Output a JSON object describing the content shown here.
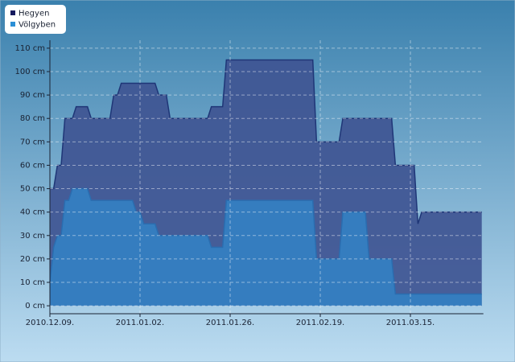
{
  "chart_data": {
    "type": "area",
    "x": [
      "2010.12.09",
      "2010.12.10",
      "2010.12.11",
      "2010.12.12",
      "2010.12.13",
      "2010.12.14",
      "2010.12.15",
      "2010.12.16",
      "2010.12.17",
      "2010.12.18",
      "2010.12.19",
      "2010.12.20",
      "2010.12.21",
      "2010.12.22",
      "2010.12.23",
      "2010.12.24",
      "2010.12.25",
      "2010.12.26",
      "2010.12.27",
      "2010.12.28",
      "2010.12.29",
      "2010.12.30",
      "2010.12.31",
      "2011.01.01",
      "2011.01.02",
      "2011.01.03",
      "2011.01.04",
      "2011.01.05",
      "2011.01.06",
      "2011.01.07",
      "2011.01.08",
      "2011.01.09",
      "2011.01.10",
      "2011.01.11",
      "2011.01.12",
      "2011.01.13",
      "2011.01.14",
      "2011.01.15",
      "2011.01.16",
      "2011.01.17",
      "2011.01.18",
      "2011.01.19",
      "2011.01.20",
      "2011.01.21",
      "2011.01.22",
      "2011.01.23",
      "2011.01.24",
      "2011.01.25",
      "2011.01.26",
      "2011.01.27",
      "2011.01.28",
      "2011.01.29",
      "2011.01.30",
      "2011.01.31",
      "2011.02.01",
      "2011.02.02",
      "2011.02.03",
      "2011.02.04",
      "2011.02.05",
      "2011.02.06",
      "2011.02.07",
      "2011.02.08",
      "2011.02.09",
      "2011.02.10",
      "2011.02.11",
      "2011.02.12",
      "2011.02.13",
      "2011.02.14",
      "2011.02.15",
      "2011.02.16",
      "2011.02.17",
      "2011.02.18",
      "2011.02.19",
      "2011.02.20",
      "2011.02.21",
      "2011.02.22",
      "2011.02.23",
      "2011.02.24",
      "2011.02.25",
      "2011.02.26",
      "2011.02.27",
      "2011.02.28",
      "2011.03.01",
      "2011.03.02",
      "2011.03.03",
      "2011.03.04",
      "2011.03.05",
      "2011.03.06",
      "2011.03.07",
      "2011.03.08",
      "2011.03.09",
      "2011.03.10",
      "2011.03.11",
      "2011.03.12",
      "2011.03.13",
      "2011.03.14",
      "2011.03.15",
      "2011.03.16",
      "2011.03.17",
      "2011.03.18",
      "2011.03.19",
      "2011.03.20",
      "2011.03.21",
      "2011.03.22",
      "2011.03.23",
      "2011.03.24",
      "2011.03.25",
      "2011.03.26",
      "2011.03.27",
      "2011.03.28",
      "2011.03.29",
      "2011.03.30",
      "2011.03.31",
      "2011.04.01",
      "2011.04.02",
      "2011.04.03"
    ],
    "series": [
      {
        "name": "Hegyen",
        "color": "#1f3677",
        "fill": "#3f5592",
        "legend_color": "#151a5e",
        "values": [
          50,
          50,
          60,
          60,
          80,
          80,
          80,
          85,
          85,
          85,
          85,
          80,
          80,
          80,
          80,
          80,
          80,
          90,
          90,
          95,
          95,
          95,
          95,
          95,
          95,
          95,
          95,
          95,
          95,
          90,
          90,
          90,
          80,
          80,
          80,
          80,
          80,
          80,
          80,
          80,
          80,
          80,
          80,
          85,
          85,
          85,
          85,
          105,
          105,
          105,
          105,
          105,
          105,
          105,
          105,
          105,
          105,
          105,
          105,
          105,
          105,
          105,
          105,
          105,
          105,
          105,
          105,
          105,
          105,
          105,
          105,
          70,
          70,
          70,
          70,
          70,
          70,
          70,
          80,
          80,
          80,
          80,
          80,
          80,
          80,
          80,
          80,
          80,
          80,
          80,
          80,
          80,
          60,
          60,
          60,
          60,
          60,
          60,
          35,
          40,
          40,
          40,
          40,
          40,
          40,
          40,
          40,
          40,
          40,
          40,
          40,
          40,
          40,
          40,
          40,
          40
        ]
      },
      {
        "name": "Völgyben",
        "color": "#2a6db0",
        "fill": "#3480c2",
        "legend_color": "#2b8fd6",
        "values": [
          10,
          25,
          30,
          30,
          45,
          45,
          50,
          50,
          50,
          50,
          50,
          45,
          45,
          45,
          45,
          45,
          45,
          45,
          45,
          45,
          45,
          45,
          45,
          40,
          40,
          35,
          35,
          35,
          35,
          30,
          30,
          30,
          30,
          30,
          30,
          30,
          30,
          30,
          30,
          30,
          30,
          30,
          30,
          25,
          25,
          25,
          25,
          45,
          45,
          45,
          45,
          45,
          45,
          45,
          45,
          45,
          45,
          45,
          45,
          45,
          45,
          45,
          45,
          45,
          45,
          45,
          45,
          45,
          45,
          45,
          45,
          20,
          20,
          20,
          20,
          20,
          20,
          20,
          40,
          40,
          40,
          40,
          40,
          40,
          40,
          20,
          20,
          20,
          20,
          20,
          20,
          20,
          5,
          5,
          5,
          5,
          5,
          5,
          5,
          5,
          5,
          5,
          5,
          5,
          5,
          5,
          5,
          5,
          5,
          5,
          5,
          5,
          5,
          5,
          5,
          5
        ]
      }
    ],
    "xlim": [
      "2010.12.09",
      "2011.04.03"
    ],
    "xticks": [
      {
        "value": "2010.12.09",
        "label": "2010.12.09."
      },
      {
        "value": "2011.01.02",
        "label": "2011.01.02."
      },
      {
        "value": "2011.01.26",
        "label": "2011.01.26."
      },
      {
        "value": "2011.02.19",
        "label": "2011.02.19."
      },
      {
        "value": "2011.03.15",
        "label": "2011.03.15."
      }
    ],
    "ylim": [
      -3.4,
      113.4
    ],
    "yticks": [
      {
        "value": 0,
        "label": "0 cm"
      },
      {
        "value": 10,
        "label": "10 cm"
      },
      {
        "value": 20,
        "label": "20 cm"
      },
      {
        "value": 30,
        "label": "30 cm"
      },
      {
        "value": 40,
        "label": "40 cm"
      },
      {
        "value": 50,
        "label": "50 cm"
      },
      {
        "value": 60,
        "label": "60 cm"
      },
      {
        "value": 70,
        "label": "70 cm"
      },
      {
        "value": 80,
        "label": "80 cm"
      },
      {
        "value": 90,
        "label": "90 cm"
      },
      {
        "value": 100,
        "label": "100 cm"
      },
      {
        "value": 110,
        "label": "110 cm"
      }
    ],
    "grid": true,
    "legend": "top-left"
  }
}
